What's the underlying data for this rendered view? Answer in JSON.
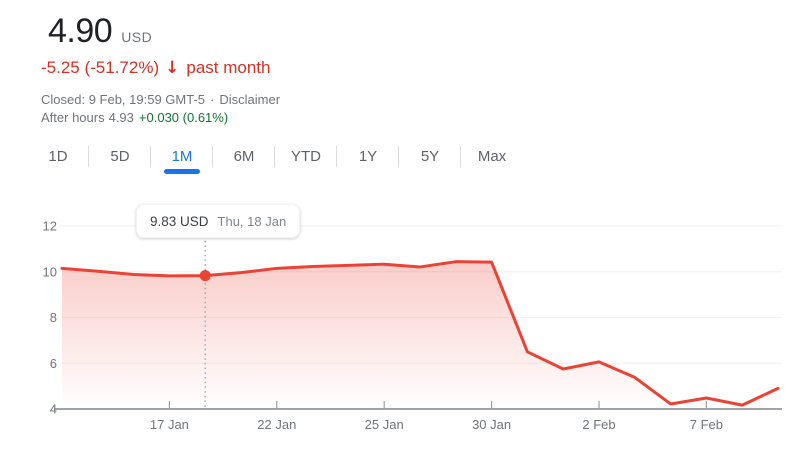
{
  "header": {
    "price": "4.90",
    "currency": "USD",
    "change": "-5.25 (-51.72%)",
    "change_arrow": "↓",
    "change_period": "past month",
    "closed_line": "Closed: 9 Feb, 19:59 GMT-5",
    "separator": "·",
    "disclaimer": "Disclaimer",
    "after_hours_label": "After hours",
    "after_hours_price": "4.93",
    "after_hours_change": "+0.030 (0.61%)"
  },
  "tabs": {
    "items": [
      "1D",
      "5D",
      "1M",
      "6M",
      "YTD",
      "1Y",
      "5Y",
      "Max"
    ],
    "active": "1M"
  },
  "colors": {
    "text_red": "#d93025",
    "line_red": "#ea4335",
    "green": "#137333",
    "blue": "#1a73e8",
    "gray_text": "#70757a",
    "dark_text": "#202124",
    "gridline": "#f1f3f4",
    "axis": "#80868b",
    "tick": "#9aa0a6"
  },
  "chart_data": {
    "type": "area",
    "title": "",
    "xlabel": "",
    "ylabel": "",
    "x": [
      "11 Jan",
      "12 Jan",
      "16 Jan",
      "17 Jan",
      "18 Jan",
      "19 Jan",
      "22 Jan",
      "23 Jan",
      "24 Jan",
      "25 Jan",
      "26 Jan",
      "29 Jan",
      "30 Jan",
      "31 Jan",
      "1 Feb",
      "2 Feb",
      "5 Feb",
      "6 Feb",
      "7 Feb",
      "8 Feb",
      "9 Feb"
    ],
    "values": [
      10.15,
      10.02,
      9.88,
      9.82,
      9.83,
      9.96,
      10.15,
      10.23,
      10.28,
      10.33,
      10.21,
      10.44,
      10.42,
      6.5,
      5.75,
      6.06,
      5.38,
      4.22,
      4.48,
      4.17,
      4.9
    ],
    "x_tick_labels": [
      "17 Jan",
      "22 Jan",
      "25 Jan",
      "30 Jan",
      "2 Feb",
      "7 Feb"
    ],
    "x_tick_indices": [
      3,
      6,
      9,
      12,
      15,
      18
    ],
    "y_ticks": [
      4,
      6,
      8,
      10,
      12
    ],
    "ylim": [
      4,
      13
    ],
    "grid": "horizontal",
    "legend": "none",
    "highlight": {
      "index": 4,
      "value": 9.83,
      "price_label": "9.83 USD",
      "date_label": "Thu, 18 Jan"
    }
  }
}
